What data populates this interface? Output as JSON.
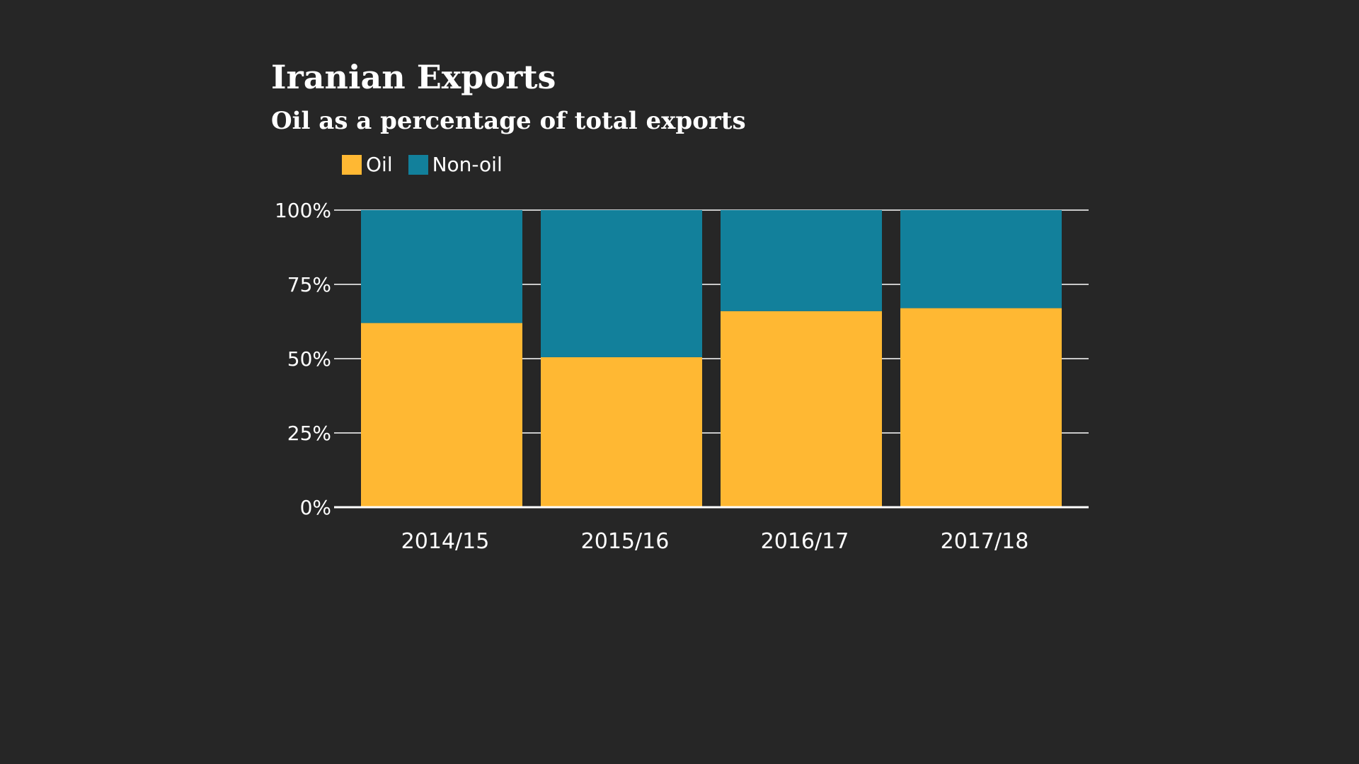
{
  "chart_data": {
    "type": "bar",
    "stacked": true,
    "title": "Iranian Exports",
    "subtitle": "Oil as a percentage of total exports",
    "categories": [
      "2014/15",
      "2015/16",
      "2016/17",
      "2017/18"
    ],
    "series": [
      {
        "name": "Oil",
        "color": "#ffb833",
        "values": [
          62,
          50.5,
          66,
          67
        ]
      },
      {
        "name": "Non-oil",
        "color": "#12809b",
        "values": [
          38,
          49.5,
          34,
          33
        ]
      }
    ],
    "ylim": [
      0,
      100
    ],
    "yticks": [
      0,
      25,
      50,
      75,
      100
    ],
    "ytick_labels": [
      "0%",
      "25%",
      "50%",
      "75%",
      "100%"
    ],
    "xlabel": "",
    "ylabel": "",
    "grid": true,
    "legend_position": "top-left"
  }
}
